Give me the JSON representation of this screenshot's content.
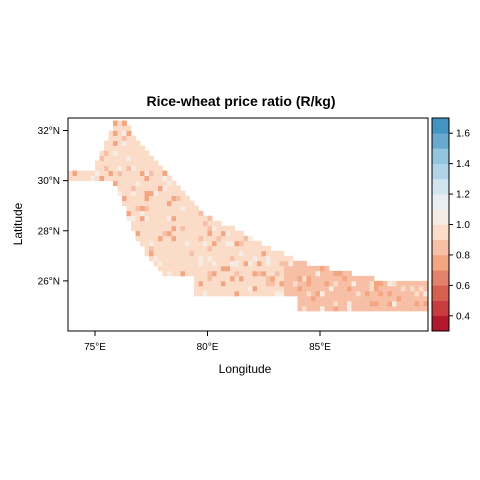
{
  "chart_data": {
    "type": "heatmap",
    "title": "Rice-wheat price ratio (R/kg)",
    "xlabel": "Longitude",
    "ylabel": "Latitude",
    "xlim": [
      73.8,
      89.8
    ],
    "ylim": [
      24.0,
      32.5
    ],
    "x_ticks": [
      {
        "value": 75,
        "label": "75°E"
      },
      {
        "value": 80,
        "label": "80°E"
      },
      {
        "value": 85,
        "label": "85°E"
      }
    ],
    "y_ticks": [
      {
        "value": 26,
        "label": "26°N"
      },
      {
        "value": 28,
        "label": "28°N"
      },
      {
        "value": 30,
        "label": "30°N"
      },
      {
        "value": 32,
        "label": "32°N"
      }
    ],
    "colorbar": {
      "range": [
        0.3,
        1.7
      ],
      "breaks": [
        0.3,
        0.4,
        0.5,
        0.6,
        0.7,
        0.8,
        0.9,
        1.0,
        1.1,
        1.2,
        1.3,
        1.4,
        1.5,
        1.6,
        1.7
      ],
      "colors": [
        "#b2182b",
        "#c83b3f",
        "#d6604d",
        "#e2826a",
        "#f4a582",
        "#f7c0a6",
        "#fbdcc8",
        "#f7ece4",
        "#e8eef3",
        "#d1e5f0",
        "#b1d3e7",
        "#92c5de",
        "#6aa9cf",
        "#4393c3",
        "#2166ac"
      ],
      "tick_values": [
        0.4,
        0.6,
        0.8,
        1.0,
        1.2,
        1.4,
        1.6
      ],
      "tick_labels": [
        "0.4",
        "0.6",
        "0.8",
        "1.0",
        "1.2",
        "1.4",
        "1.6"
      ]
    },
    "region_value_typical": 0.95,
    "region_value_east": 0.85,
    "grid": false,
    "legend": "right"
  }
}
